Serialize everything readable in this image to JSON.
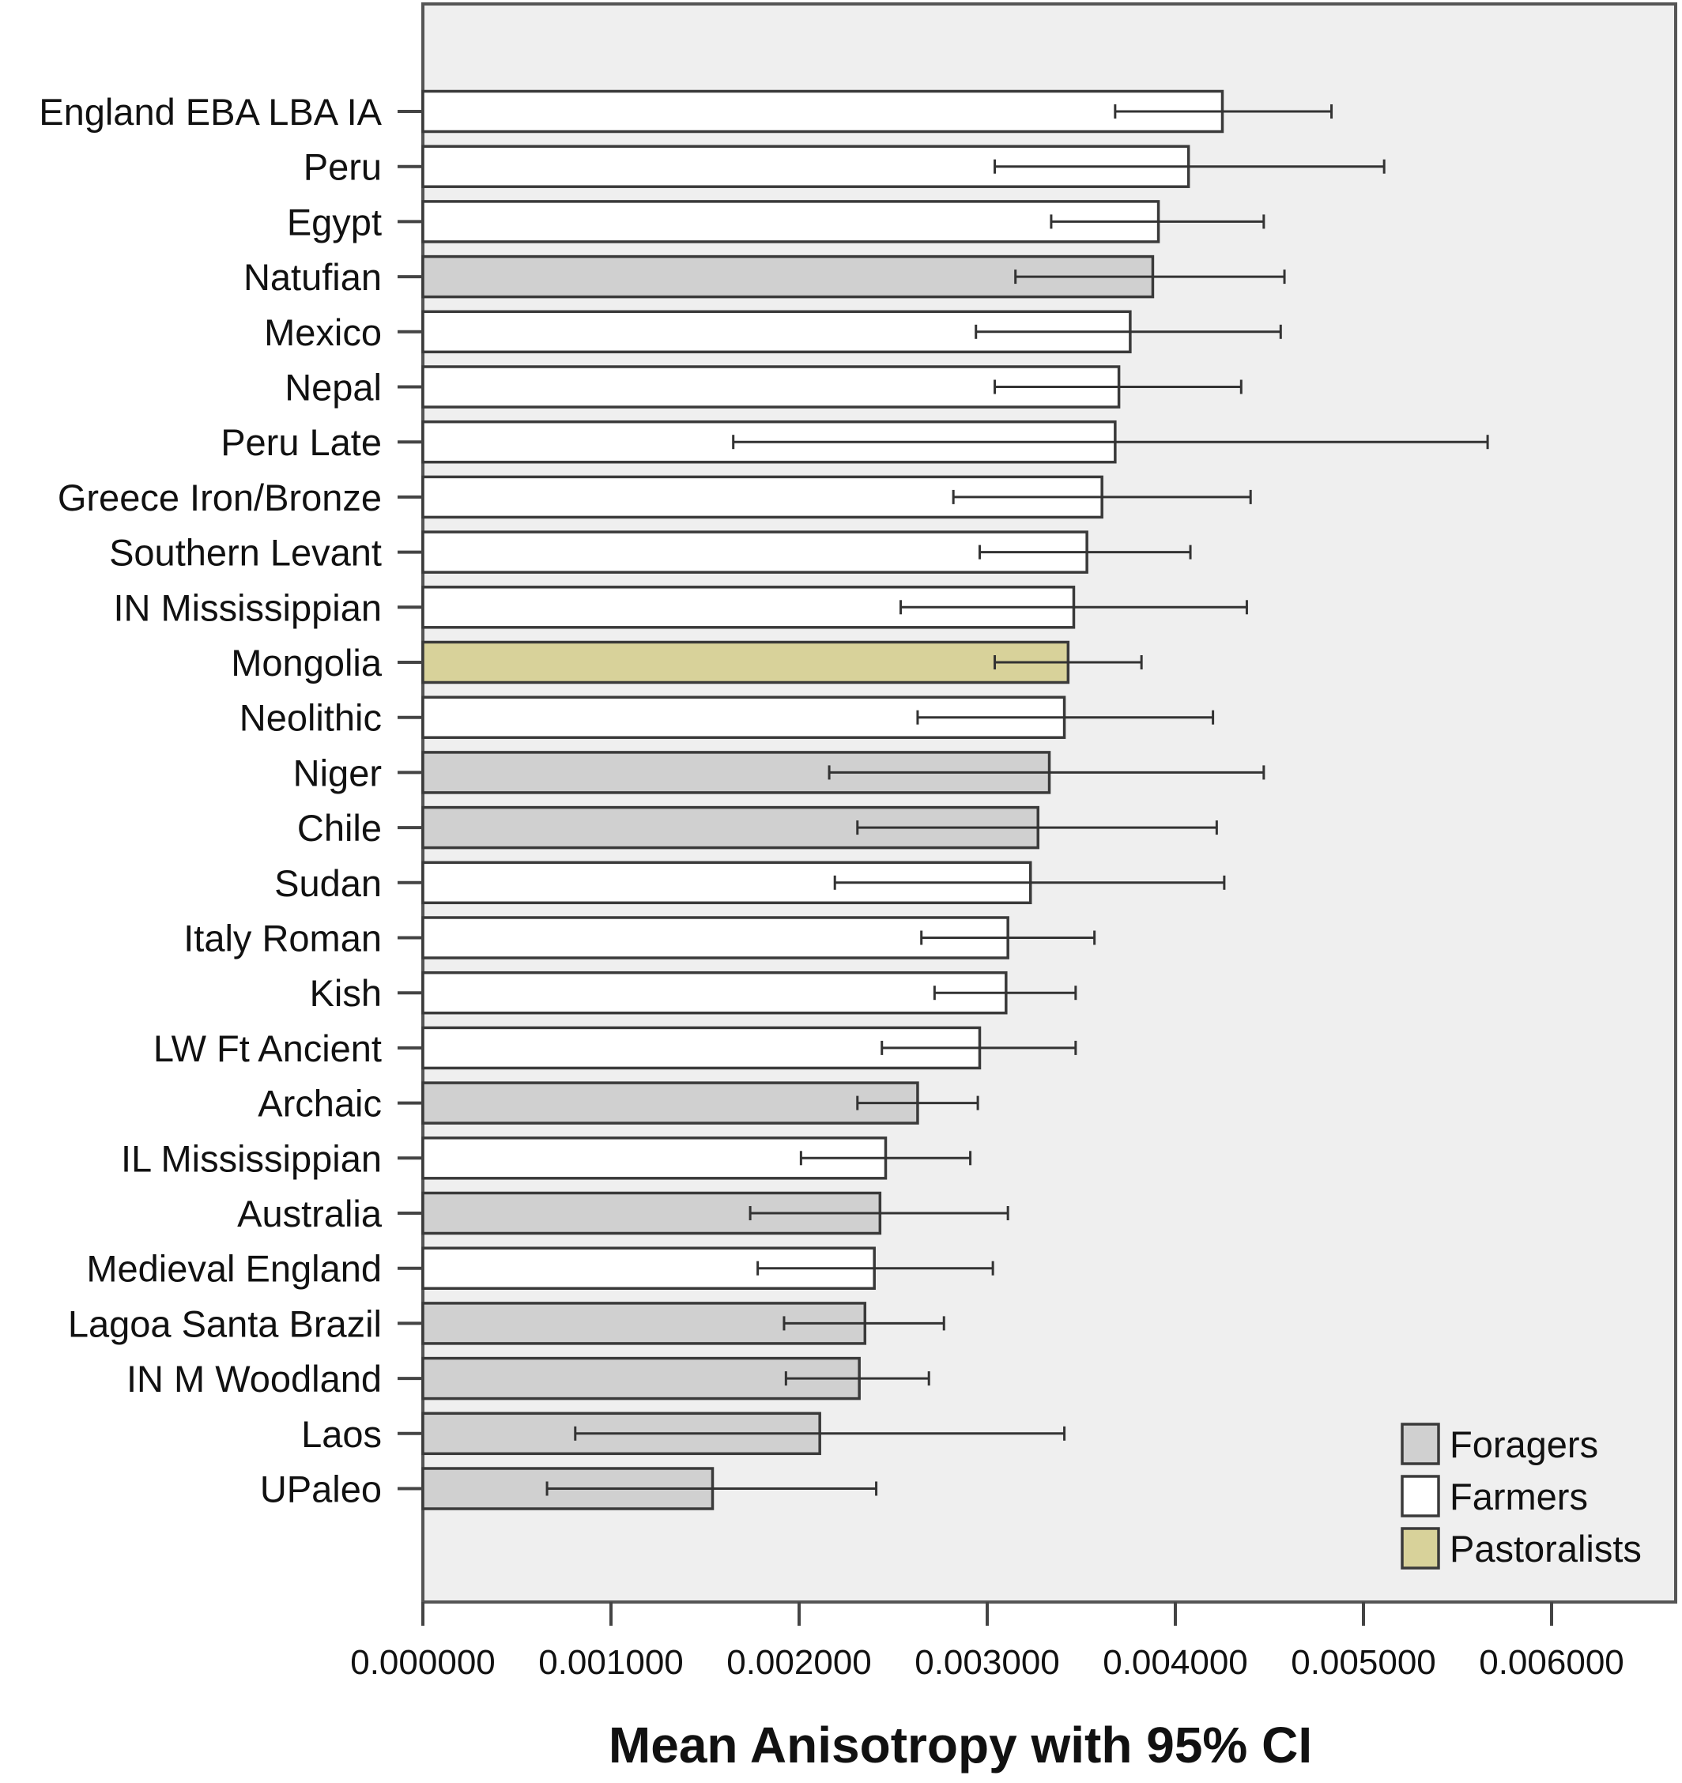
{
  "chart_data": {
    "type": "bar",
    "orientation": "horizontal",
    "xlabel": "Mean Anisotropy with 95% CI",
    "ylabel": "",
    "xlim": [
      0,
      0.00665
    ],
    "x_ticks": [
      "0.000000",
      "0.001000",
      "0.002000",
      "0.003000",
      "0.004000",
      "0.005000",
      "0.006000"
    ],
    "x_tick_values": [
      0,
      0.001,
      0.002,
      0.003,
      0.004,
      0.005,
      0.006
    ],
    "grid": false,
    "legend_position": "bottom-right",
    "groups": [
      {
        "name": "Foragers",
        "color": "#d0d0d0"
      },
      {
        "name": "Farmers",
        "color": "#ffffff"
      },
      {
        "name": "Pastoralists",
        "color": "#d8d29a"
      }
    ],
    "categories": [
      "England EBA LBA IA",
      "Peru",
      "Egypt",
      "Natufian",
      "Mexico",
      "Nepal",
      "Peru Late",
      "Greece Iron/Bronze",
      "Southern Levant",
      "IN Mississippian",
      "Mongolia",
      "Neolithic",
      "Niger",
      "Chile",
      "Sudan",
      "Italy Roman",
      "Kish",
      "LW Ft Ancient",
      "Archaic",
      "IL Mississippian",
      "Australia",
      "Medieval England",
      "Lagoa Santa Brazil",
      "IN M Woodland",
      "Laos",
      "UPaleo"
    ],
    "group_of": [
      "Farmers",
      "Farmers",
      "Farmers",
      "Foragers",
      "Farmers",
      "Farmers",
      "Farmers",
      "Farmers",
      "Farmers",
      "Farmers",
      "Pastoralists",
      "Farmers",
      "Foragers",
      "Foragers",
      "Farmers",
      "Farmers",
      "Farmers",
      "Farmers",
      "Foragers",
      "Farmers",
      "Foragers",
      "Farmers",
      "Foragers",
      "Foragers",
      "Foragers",
      "Foragers"
    ],
    "values": [
      0.00425,
      0.00407,
      0.00391,
      0.00388,
      0.00376,
      0.0037,
      0.00368,
      0.00361,
      0.00353,
      0.00346,
      0.00343,
      0.00341,
      0.00333,
      0.00327,
      0.00323,
      0.00311,
      0.0031,
      0.00296,
      0.00263,
      0.00246,
      0.00243,
      0.0024,
      0.00235,
      0.00232,
      0.00211,
      0.00154
    ],
    "ci_low": [
      0.00368,
      0.00304,
      0.00334,
      0.00315,
      0.00294,
      0.00304,
      0.00165,
      0.00282,
      0.00296,
      0.00254,
      0.00304,
      0.00263,
      0.00216,
      0.00231,
      0.00219,
      0.00265,
      0.00272,
      0.00244,
      0.00231,
      0.00201,
      0.00174,
      0.00178,
      0.00192,
      0.00193,
      0.00081,
      0.00066
    ],
    "ci_high": [
      0.00483,
      0.00511,
      0.00447,
      0.00458,
      0.00456,
      0.00435,
      0.00566,
      0.0044,
      0.00408,
      0.00438,
      0.00382,
      0.0042,
      0.00447,
      0.00422,
      0.00426,
      0.00357,
      0.00347,
      0.00347,
      0.00295,
      0.00291,
      0.00311,
      0.00303,
      0.00277,
      0.00269,
      0.00341,
      0.00241
    ]
  }
}
